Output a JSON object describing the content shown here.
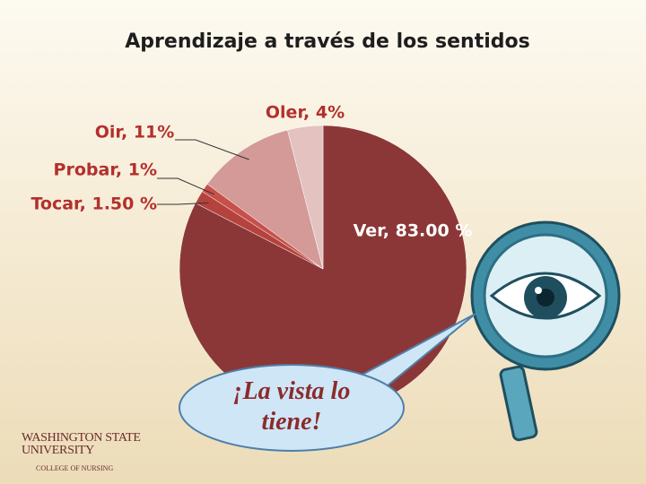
{
  "chart_data": {
    "type": "pie",
    "title": "Aprendizaje a través de los sentidos",
    "values": [
      83.0,
      1.5,
      1,
      11,
      4
    ],
    "value_labels": [
      "Ver, 83.00 %",
      "Tocar, 1.50 %",
      "Probar, 1%",
      "Oir, 11%",
      "Oler, 4%"
    ],
    "colors": [
      "#8c3737",
      "#b4433d",
      "#c8504a",
      "#d39a98",
      "#e4c2c0"
    ]
  },
  "callout": "¡La vista lo tiene!",
  "logo": {
    "name": "Washington State University",
    "unit": "College of Nursing"
  }
}
